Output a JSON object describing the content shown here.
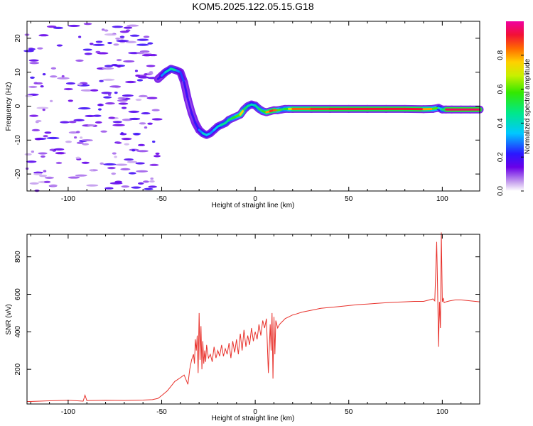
{
  "figure_title": "KOM5.2025.122.05.15.G18",
  "colors": {
    "snr_line": "#e8312b",
    "speckle": "#c9a6ee",
    "track_core": "#d81030",
    "axis": "#000000"
  },
  "chart_data": [
    {
      "type": "heatmap",
      "title": "KOM5.2025.122.05.15.G18",
      "xlabel": "Height of straight line (km)",
      "ylabel": "Frequency (Hz)",
      "xlim": [
        -122,
        120
      ],
      "ylim": [
        -25,
        25
      ],
      "xticks": [
        -100,
        -50,
        0,
        50,
        100
      ],
      "xtick_labels": [
        "-100",
        "-50",
        "0",
        "50",
        "100"
      ],
      "yticks": [
        -20,
        -10,
        0,
        10,
        20
      ],
      "ytick_labels": [
        "-20",
        "-10",
        "0",
        "10",
        "20"
      ],
      "grid": false,
      "colorbar": {
        "label": "Normalized spectral amplitude",
        "range": [
          0,
          1
        ],
        "ticks": [
          0.0,
          0.2,
          0.4,
          0.6,
          0.8
        ],
        "tick_labels": [
          "0.0",
          "0.2",
          "0.4",
          "0.6",
          "0.8"
        ],
        "colormap": "rainbow (white/violet at 0 to magenta at 1)"
      },
      "ridge_track": {
        "description": "dominant frequency ridge vs height",
        "x": [
          -52,
          -50,
          -48,
          -45,
          -42,
          -40,
          -38,
          -36,
          -34,
          -32,
          -30,
          -28,
          -26,
          -24,
          -22,
          -20,
          -18,
          -16,
          -14,
          -12,
          -10,
          -8,
          -6,
          -4,
          -2,
          0,
          2,
          4,
          6,
          8,
          10,
          12,
          14,
          16,
          18,
          20,
          30,
          40,
          50,
          60,
          70,
          80,
          90,
          95,
          98,
          100,
          102,
          105,
          110,
          115,
          120
        ],
        "freq": [
          8,
          9,
          10,
          11,
          10.5,
          10,
          7,
          2,
          -2,
          -5,
          -7,
          -8,
          -8.5,
          -8,
          -7,
          -6,
          -5.5,
          -5,
          -4,
          -3.5,
          -3,
          -2.5,
          -1,
          0,
          0.5,
          0.2,
          -0.8,
          -1.5,
          -1.8,
          -1.5,
          -1.2,
          -1.2,
          -1.0,
          -0.8,
          -0.8,
          -0.8,
          -0.8,
          -0.8,
          -0.8,
          -0.8,
          -0.8,
          -0.8,
          -0.9,
          -0.8,
          -0.5,
          -1.0,
          -1.0,
          -1.0,
          -1.0,
          -1.0,
          -1.0
        ],
        "amplitude": [
          0.2,
          0.3,
          0.4,
          0.45,
          0.3,
          0.25,
          0.2,
          0.18,
          0.2,
          0.22,
          0.3,
          0.4,
          0.35,
          0.3,
          0.35,
          0.4,
          0.45,
          0.45,
          0.5,
          0.55,
          0.6,
          0.75,
          0.5,
          0.45,
          0.4,
          0.45,
          0.5,
          0.55,
          0.8,
          0.9,
          0.85,
          0.6,
          0.5,
          0.55,
          0.7,
          0.85,
          0.9,
          0.92,
          0.92,
          0.92,
          0.92,
          0.92,
          0.8,
          0.6,
          0.4,
          0.5,
          0.95,
          0.95,
          0.95,
          0.95,
          0.95
        ]
      }
    },
    {
      "type": "line",
      "xlabel": "Height of straight line (km)",
      "ylabel": "SNR (v/v)",
      "xlim": [
        -122,
        120
      ],
      "ylim": [
        15,
        920
      ],
      "xticks": [
        -100,
        -50,
        0,
        50,
        100
      ],
      "xtick_labels": [
        "-100",
        "-50",
        "0",
        "50",
        "100"
      ],
      "yticks": [
        200,
        400,
        600,
        800
      ],
      "ytick_labels": [
        "200",
        "400",
        "600",
        "800"
      ],
      "grid": false,
      "series": [
        {
          "x": [
            -122,
            -110,
            -100,
            -92,
            -91,
            -90,
            -80,
            -70,
            -60,
            -55,
            -52,
            -50,
            -47,
            -45,
            -43,
            -40,
            -38,
            -36,
            -35,
            -34,
            -33,
            -32.5,
            -32,
            -31.5,
            -31,
            -30.5,
            -30,
            -29.5,
            -29,
            -28.5,
            -28,
            -27.5,
            -27,
            -26.5,
            -26,
            -25,
            -24,
            -23,
            -22,
            -21,
            -20,
            -19,
            -18,
            -17,
            -16,
            -15,
            -14,
            -13,
            -12,
            -11,
            -10,
            -9,
            -8,
            -7,
            -6,
            -5,
            -4,
            -3,
            -2,
            -1,
            0,
            1,
            2,
            3,
            4,
            5,
            6,
            7,
            8,
            8.5,
            9,
            9.5,
            10,
            10.5,
            11,
            12,
            13,
            14,
            15,
            16,
            18,
            20,
            22,
            25,
            30,
            35,
            40,
            45,
            50,
            55,
            60,
            65,
            70,
            75,
            80,
            85,
            90,
            95,
            96,
            97,
            97.5,
            98,
            98.5,
            99,
            99.5,
            100,
            100.5,
            101,
            102,
            104,
            107,
            110,
            115,
            120
          ],
          "values": [
            28,
            32,
            35,
            30,
            62,
            33,
            35,
            34,
            36,
            38,
            45,
            60,
            85,
            110,
            135,
            155,
            170,
            120,
            200,
            250,
            280,
            230,
            360,
            300,
            380,
            180,
            500,
            250,
            430,
            200,
            350,
            230,
            300,
            240,
            330,
            260,
            280,
            240,
            320,
            260,
            300,
            270,
            330,
            270,
            310,
            280,
            340,
            260,
            350,
            290,
            360,
            280,
            390,
            300,
            410,
            320,
            380,
            330,
            420,
            350,
            400,
            360,
            440,
            380,
            460,
            420,
            470,
            180,
            440,
            300,
            500,
            150,
            480,
            280,
            460,
            420,
            440,
            450,
            460,
            470,
            480,
            490,
            495,
            505,
            515,
            525,
            530,
            535,
            540,
            545,
            548,
            552,
            555,
            558,
            560,
            562,
            562,
            575,
            565,
            880,
            620,
            320,
            560,
            420,
            930,
            560,
            580,
            555,
            560,
            565,
            570,
            570,
            565,
            560
          ]
        }
      ]
    }
  ]
}
